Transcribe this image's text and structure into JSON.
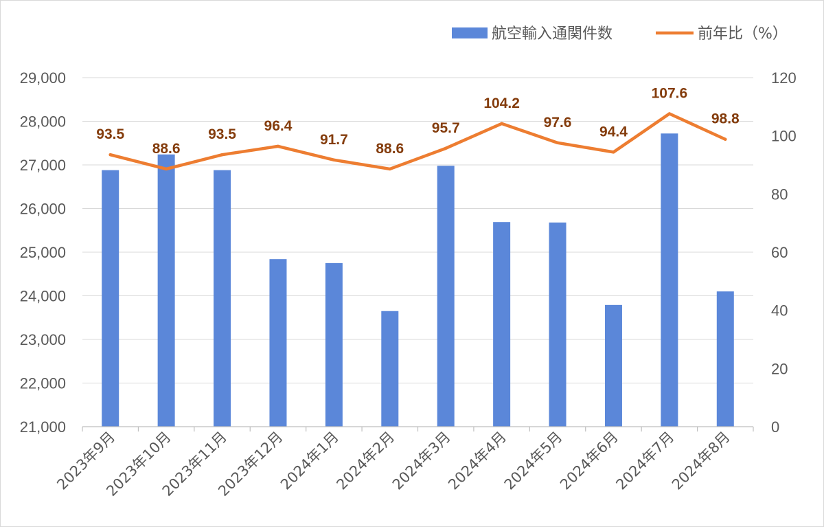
{
  "chart_data": {
    "type": "bar",
    "categories": [
      "2023年9月",
      "2023年10月",
      "2023年11月",
      "2023年12月",
      "2024年1月",
      "2024年2月",
      "2024年3月",
      "2024年4月",
      "2024年5月",
      "2024年6月",
      "2024年7月",
      "2024年8月"
    ],
    "series": [
      {
        "name": "航空輸入通関件数",
        "type": "bar",
        "axis": "left",
        "color": "#5b87d9",
        "values": [
          26880,
          27240,
          26880,
          24840,
          24750,
          23650,
          26980,
          25690,
          25680,
          23790,
          27720,
          24100
        ]
      },
      {
        "name": "前年比（%）",
        "type": "line",
        "axis": "right",
        "color": "#ed7d31",
        "values": [
          93.5,
          88.6,
          93.5,
          96.4,
          91.7,
          88.6,
          95.7,
          104.2,
          97.6,
          94.4,
          107.6,
          98.8
        ],
        "data_labels": [
          "93.5",
          "88.6",
          "93.5",
          "96.4",
          "91.7",
          "88.6",
          "95.7",
          "104.2",
          "97.6",
          "94.4",
          "107.6",
          "98.8"
        ]
      }
    ],
    "y_left": {
      "min": 21000,
      "max": 29000,
      "step": 1000,
      "ticks": [
        "21,000",
        "22,000",
        "23,000",
        "24,000",
        "25,000",
        "26,000",
        "27,000",
        "28,000",
        "29,000"
      ]
    },
    "y_right": {
      "min": 0,
      "max": 120,
      "step": 20,
      "ticks": [
        "0",
        "20",
        "40",
        "60",
        "80",
        "100",
        "120"
      ]
    },
    "grid": true,
    "legend_position": "top-right",
    "title": "",
    "xlabel": "",
    "ylabel": ""
  }
}
